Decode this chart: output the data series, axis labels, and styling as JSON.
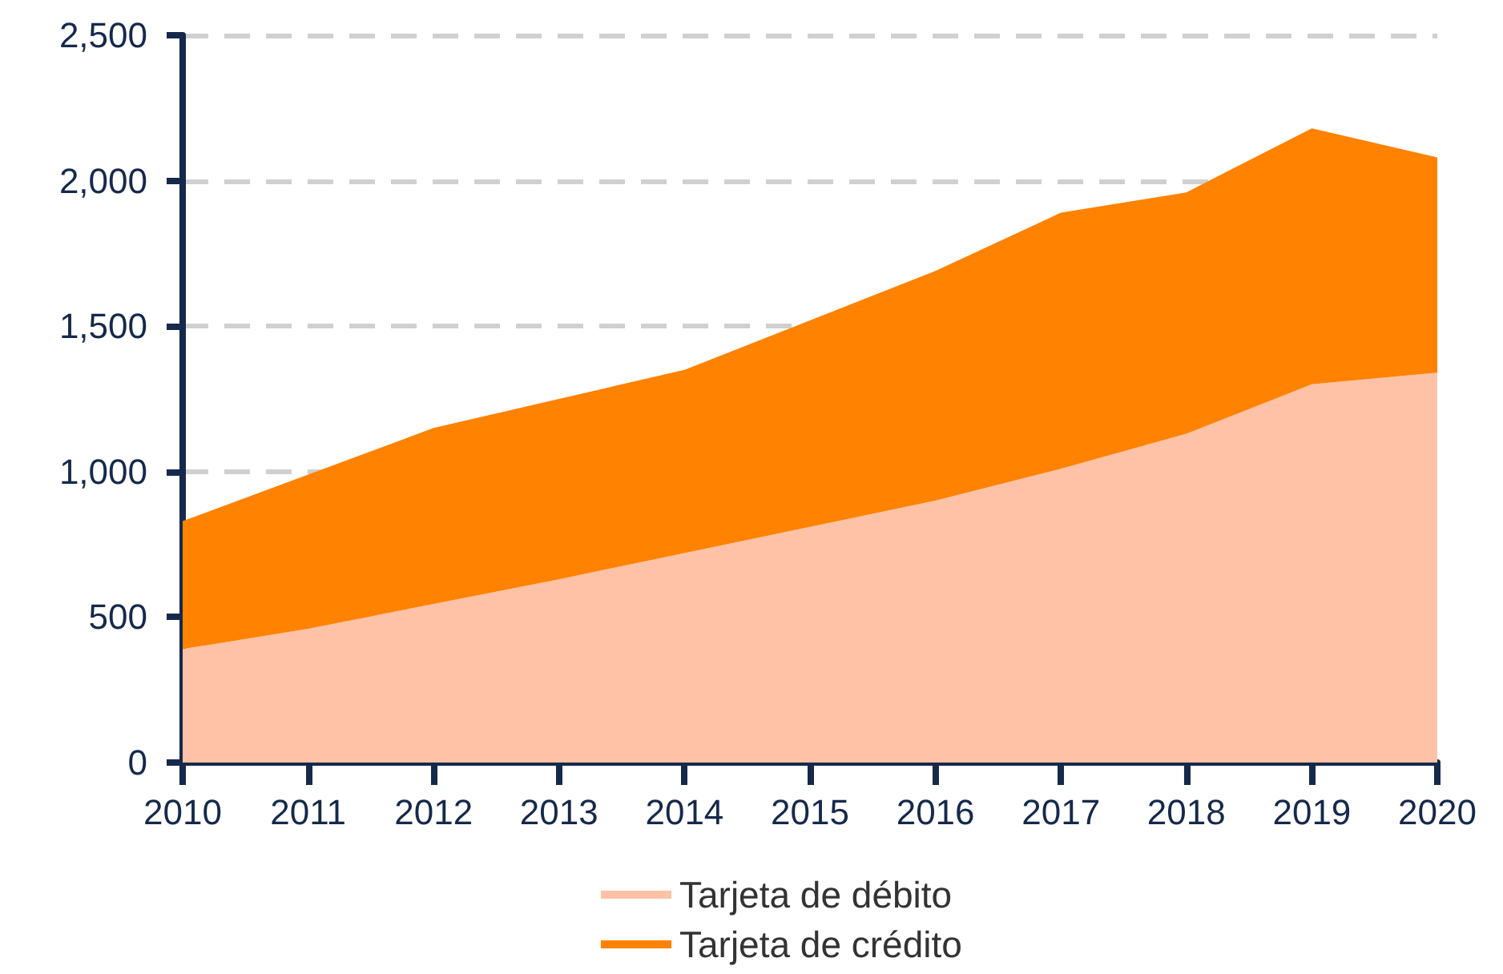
{
  "chart_data": {
    "type": "area",
    "stacked": true,
    "categories": [
      "2010",
      "2011",
      "2012",
      "2013",
      "2014",
      "2015",
      "2016",
      "2017",
      "2018",
      "2019",
      "2020"
    ],
    "series": [
      {
        "name": "Tarjeta de débito",
        "color": "#ffc2a6",
        "values": [
          390,
          460,
          545,
          630,
          720,
          810,
          900,
          1010,
          1130,
          1300,
          1340
        ]
      },
      {
        "name": "Tarjeta de crédito",
        "color": "#ff8200",
        "values": [
          440,
          530,
          605,
          620,
          630,
          710,
          790,
          880,
          830,
          880,
          740
        ]
      }
    ],
    "ylim": [
      0,
      2500
    ],
    "yticks": [
      0,
      500,
      {
        "value": 1000,
        "label": "1,000"
      },
      {
        "value": 1500,
        "label": "1,500"
      },
      {
        "value": 2000,
        "label": "2,000"
      },
      {
        "value": 2500,
        "label": "2,500"
      }
    ],
    "grid": "y",
    "legend": "bottom",
    "marker": "none"
  }
}
